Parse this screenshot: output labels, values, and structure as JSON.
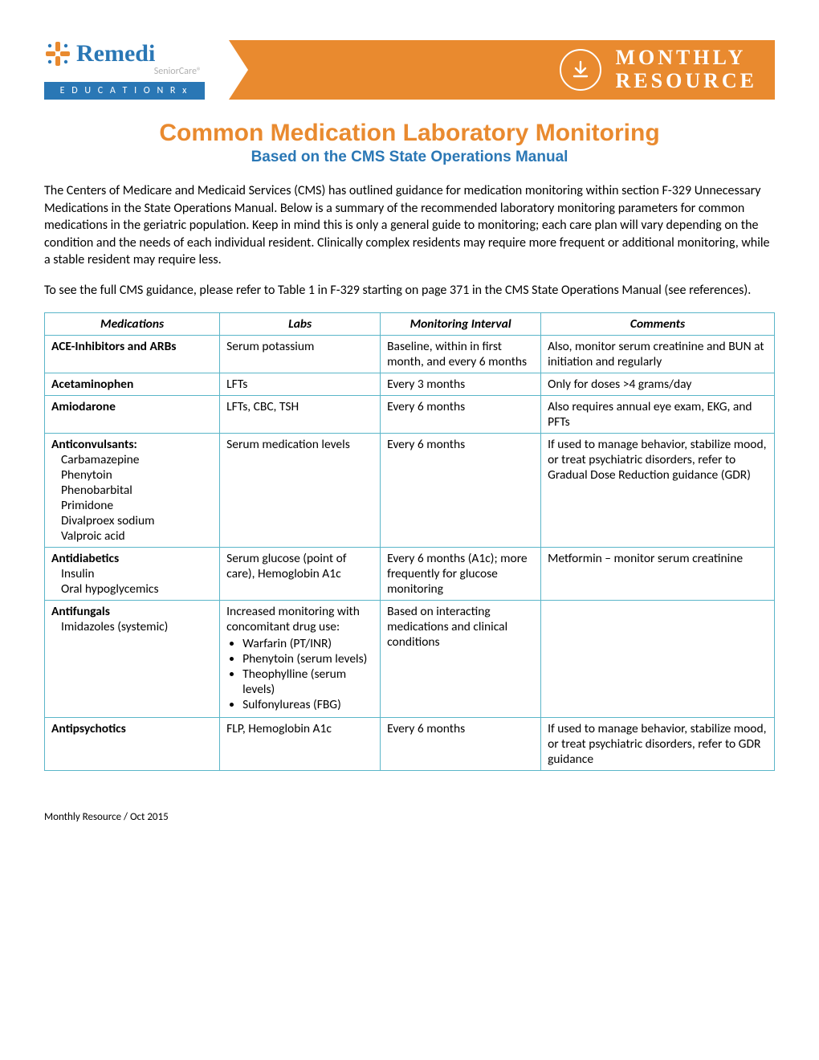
{
  "logo": {
    "brand": "Remedi",
    "sub": "SeniorCare®",
    "badge": "E D U C A T I O N   R x",
    "accent_color": "#e98a2f",
    "brand_color": "#2a77b5"
  },
  "banner": {
    "line1": "MONTHLY",
    "line2": "RESOURCE"
  },
  "title": {
    "main": "Common Medication Laboratory Monitoring",
    "sub": "Based on the CMS State Operations Manual"
  },
  "intro_p1": "The Centers of Medicare and Medicaid Services (CMS) has outlined guidance for medication monitoring within section F-329 Unnecessary Medications in the State Operations Manual. Below is a summary of the recommended laboratory monitoring parameters for common medications in the geriatric population. Keep in mind this is only a general guide to monitoring; each care plan will vary depending on the condition and the needs of each individual resident. Clinically complex residents may require more frequent or additional monitoring, while a stable resident may require less.",
  "intro_p2": "To see the full CMS guidance, please refer to Table 1 in F-329 starting on page 371 in the CMS State Operations Manual (see references).",
  "table": {
    "headers": [
      "Medications",
      "Labs",
      "Monitoring Interval",
      "Comments"
    ],
    "rows": [
      {
        "med_main": "ACE-Inhibitors and ARBs",
        "med_subs": [],
        "labs_text": "Serum potassium",
        "labs_bullets": [],
        "interval": "Baseline, within in first month, and every 6 months",
        "comments": "Also, monitor serum creatinine and BUN at initiation and regularly"
      },
      {
        "med_main": "Acetaminophen",
        "med_subs": [],
        "labs_text": "LFTs",
        "labs_bullets": [],
        "interval": "Every 3 months",
        "comments": "Only for doses >4 grams/day"
      },
      {
        "med_main": "Amiodarone",
        "med_subs": [],
        "labs_text": "LFTs, CBC, TSH",
        "labs_bullets": [],
        "interval": "Every 6 months",
        "comments": "Also requires annual eye exam, EKG, and PFTs"
      },
      {
        "med_main": "Anticonvulsants:",
        "med_subs": [
          "Carbamazepine",
          "Phenytoin",
          "Phenobarbital",
          "Primidone",
          "Divalproex sodium",
          "Valproic acid"
        ],
        "labs_text": "Serum medication levels",
        "labs_bullets": [],
        "interval": "Every 6 months",
        "comments": "If used to manage behavior, stabilize mood, or treat psychiatric disorders, refer to Gradual Dose Reduction guidance (GDR)"
      },
      {
        "med_main": "Antidiabetics",
        "med_subs": [
          "Insulin",
          "Oral hypoglycemics"
        ],
        "labs_text": "Serum glucose (point of care), Hemoglobin A1c",
        "labs_bullets": [],
        "interval": "Every 6 months (A1c); more frequently for glucose monitoring",
        "comments": "Metformin – monitor serum creatinine"
      },
      {
        "med_main": "Antifungals",
        "med_subs": [
          "Imidazoles (systemic)"
        ],
        "labs_text": "Increased monitoring with concomitant drug use:",
        "labs_bullets": [
          "Warfarin (PT/INR)",
          "Phenytoin (serum levels)",
          "Theophylline (serum levels)",
          "Sulfonylureas (FBG)"
        ],
        "interval": "Based on interacting medications and clinical conditions",
        "comments": ""
      },
      {
        "med_main": "Antipsychotics",
        "med_subs": [],
        "labs_text": "FLP, Hemoglobin A1c",
        "labs_bullets": [],
        "interval": "Every 6 months",
        "comments": "If used to manage behavior, stabilize mood, or treat psychiatric disorders, refer to GDR guidance"
      }
    ]
  },
  "footer": "Monthly Resource / Oct 2015"
}
